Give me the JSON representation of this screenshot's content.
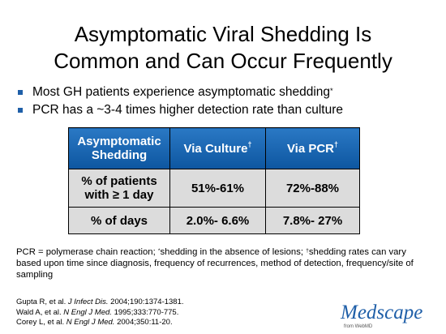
{
  "title": [
    "Asymptomatic Viral Shedding Is",
    "Common and Can Occur Frequently"
  ],
  "bullets": [
    {
      "text": "Most GH patients experience asymptomatic shedding",
      "sup": "*"
    },
    {
      "text": "PCR has a ~3-4 times higher detection rate than culture"
    }
  ],
  "table": {
    "header": [
      {
        "text": "Asymptomatic Shedding"
      },
      {
        "text": "Via Culture",
        "sup": "†"
      },
      {
        "text": "Via PCR",
        "sup": "†"
      }
    ],
    "rows": [
      [
        "% of patients with ≥ 1 day",
        "51%-61%",
        "72%-88%"
      ],
      [
        "% of days",
        "2.0%- 6.6%",
        "7.8%- 27%"
      ]
    ]
  },
  "footnote": [
    "PCR = polymerase chain reaction; ",
    "*",
    "shedding in the absence of lesions; ",
    "†",
    "shedding rates can vary based upon time since diagnosis, frequency of recurrences, method of detection, frequency/site of sampling"
  ],
  "references": [
    {
      "authors": "Gupta R, et al. ",
      "journal": "J Infect Dis.",
      "cite": " 2004;190:1374-1381."
    },
    {
      "authors": "Wald A, et al. ",
      "journal": "N Engl J Med.",
      "cite": " 1995;333:770-775."
    },
    {
      "authors": "Corey L, et al. ",
      "journal": "N Engl J Med.",
      "cite": " 2004;350:11-20."
    }
  ],
  "logo": {
    "name": "Medscape",
    "tagline": "from WebMD"
  }
}
